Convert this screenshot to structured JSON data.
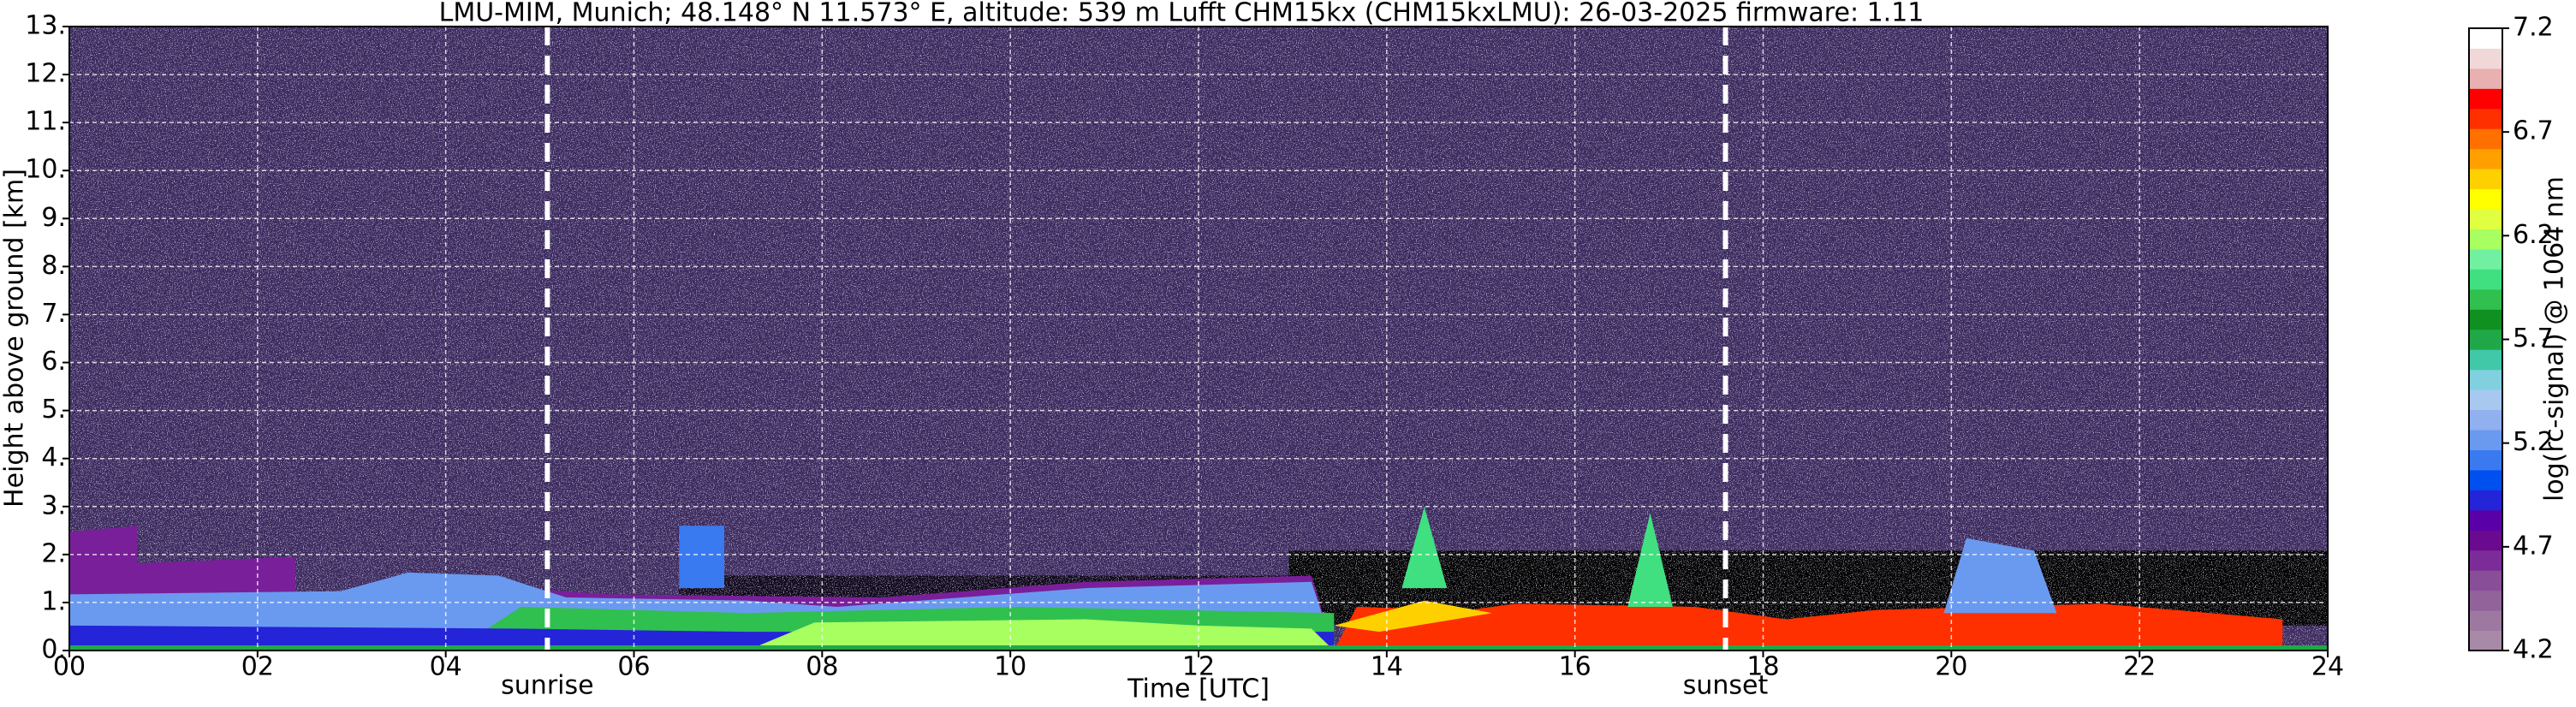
{
  "chart_data": {
    "type": "heatmap",
    "title": "LMU-MIM, Munich; 48.148° N 11.573° E, altitude: 539 m    Lufft CHM15kx (CHM15kxLMU): 26-03-2025    firmware: 1.11",
    "x_label": "Time [UTC]",
    "y_label": "Height above ground [km]",
    "xlim": [
      0,
      24
    ],
    "xticks": [
      {
        "value": 0,
        "label": "00"
      },
      {
        "value": 2,
        "label": "02"
      },
      {
        "value": 4,
        "label": "04"
      },
      {
        "value": 6,
        "label": "06"
      },
      {
        "value": 8,
        "label": "08"
      },
      {
        "value": 10,
        "label": "10"
      },
      {
        "value": 12,
        "label": "12"
      },
      {
        "value": 14,
        "label": "14"
      },
      {
        "value": 16,
        "label": "16"
      },
      {
        "value": 18,
        "label": "18"
      },
      {
        "value": 20,
        "label": "20"
      },
      {
        "value": 22,
        "label": "22"
      },
      {
        "value": 24,
        "label": "24"
      }
    ],
    "ylim": [
      0,
      13
    ],
    "yticks": [
      {
        "value": 0,
        "label": "0."
      },
      {
        "value": 1,
        "label": "1."
      },
      {
        "value": 2,
        "label": "2."
      },
      {
        "value": 3,
        "label": "3."
      },
      {
        "value": 4,
        "label": "4."
      },
      {
        "value": 5,
        "label": "5."
      },
      {
        "value": 6,
        "label": "6."
      },
      {
        "value": 7,
        "label": "7."
      },
      {
        "value": 8,
        "label": "8."
      },
      {
        "value": 9,
        "label": "9."
      },
      {
        "value": 10,
        "label": "10."
      },
      {
        "value": 11,
        "label": "11."
      },
      {
        "value": 12,
        "label": "12."
      },
      {
        "value": 13,
        "label": "13."
      }
    ],
    "grid": true,
    "annotations": [
      {
        "text": "sunrise",
        "x": 5.08
      },
      {
        "text": "sunset",
        "x": 17.6
      }
    ],
    "colorbar": {
      "label": "log(rc-signal) @ 1064 nm",
      "lim": [
        4.2,
        7.2
      ],
      "ticks": [
        4.2,
        4.7,
        5.2,
        5.7,
        6.2,
        6.7,
        7.2
      ],
      "colors": [
        "#a88aa8",
        "#9d78a0",
        "#92629a",
        "#884e98",
        "#7c2c98",
        "#6a0a90",
        "#5a00a8",
        "#2424d8",
        "#0050f0",
        "#3a7af0",
        "#6a9af0",
        "#90b0f0",
        "#a8c8f0",
        "#80d0e0",
        "#40c8a8",
        "#20a848",
        "#109020",
        "#30c050",
        "#40e080",
        "#70f0a0",
        "#a8ff60",
        "#e0ff40",
        "#ffff00",
        "#ffd000",
        "#ffa000",
        "#ff7000",
        "#ff3000",
        "#ff0000",
        "#e8b0b0",
        "#f0d8d8",
        "#ffffff"
      ]
    }
  }
}
